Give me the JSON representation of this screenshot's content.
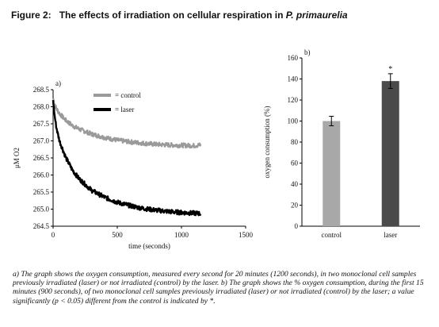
{
  "figure": {
    "label": "Figure 2:",
    "title": "The effects of irradiation on cellular respiration in",
    "species": "P. primaurelia"
  },
  "chart_data": [
    {
      "panel": "a)",
      "type": "line",
      "xlabel": "time (seconds)",
      "ylabel": "μM O2",
      "xlim": [
        0,
        1500
      ],
      "ylim": [
        264.5,
        268.5
      ],
      "xticks": [
        0,
        500,
        1000,
        1500
      ],
      "yticks": [
        264.5,
        265.0,
        265.5,
        266.0,
        266.5,
        267.0,
        267.5,
        268.0,
        268.5
      ],
      "grid": false,
      "legend_position": "top-center",
      "series": [
        {
          "name": "control",
          "color": "#9a9a9a",
          "x": [
            0,
            10,
            25,
            50,
            100,
            150,
            200,
            300,
            400,
            500,
            600,
            700,
            800,
            900,
            1000,
            1100,
            1150
          ],
          "y": [
            268.25,
            268.1,
            267.95,
            267.8,
            267.6,
            267.45,
            267.35,
            267.2,
            267.1,
            267.02,
            266.97,
            266.93,
            266.9,
            266.88,
            266.87,
            266.86,
            266.88
          ]
        },
        {
          "name": "laser",
          "color": "#000000",
          "x": [
            0,
            10,
            25,
            50,
            100,
            150,
            200,
            300,
            400,
            500,
            600,
            700,
            800,
            900,
            1000,
            1100,
            1150
          ],
          "y": [
            268.2,
            267.8,
            267.4,
            267.0,
            266.5,
            266.15,
            265.9,
            265.55,
            265.35,
            265.2,
            265.1,
            265.02,
            264.97,
            264.93,
            264.9,
            264.88,
            264.87
          ]
        }
      ]
    },
    {
      "panel": "b)",
      "type": "bar",
      "categories": [
        "control",
        "laser"
      ],
      "values": [
        100,
        138
      ],
      "errors": [
        4.5,
        7
      ],
      "colors": [
        "#a8a8a8",
        "#4a4a4a"
      ],
      "ylabel": "oxygen consumption (%)",
      "ylim": [
        0,
        160
      ],
      "yticks": [
        0,
        20,
        40,
        60,
        80,
        100,
        120,
        140,
        160
      ],
      "annotation": "*",
      "grid": false
    }
  ],
  "caption": "a) The graph shows the oxygen consumption, measured every second for 20 minutes (1200 seconds), in two monoclonal cell samples previously irradiated (laser) or not irradiated (control) by the laser. b) The graph shows the % oxygen consumption, during the first 15 minutes (900 seconds), of two monoclonal cell samples previously irradiated (laser) or not irradiated (control) by the laser; a value significantly (p < 0.05) different from the control is indicated by *."
}
